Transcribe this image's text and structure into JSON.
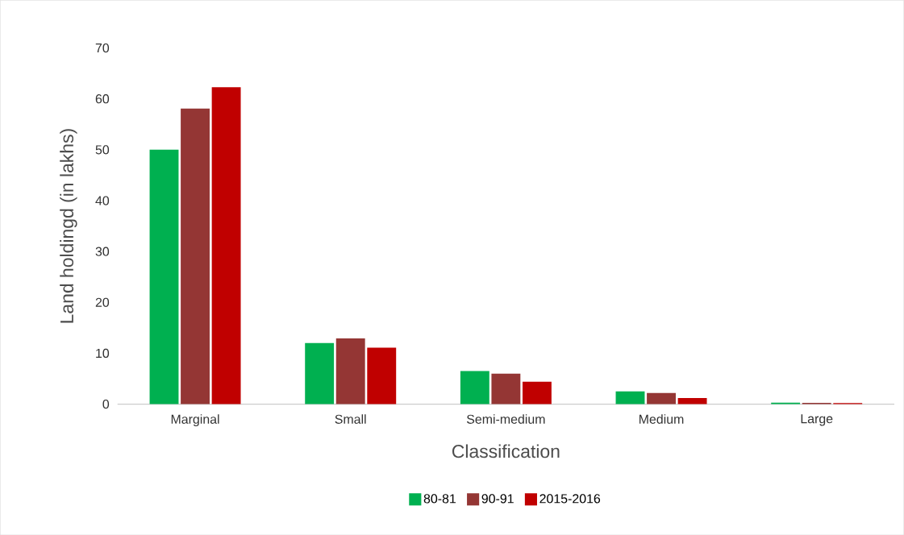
{
  "chart_data": {
    "type": "bar",
    "xlabel": "Classification",
    "ylabel": "Land holdingd (in lakhs)",
    "categories": [
      "Marginal",
      "Small",
      "Semi-medium",
      "Medium",
      "Large"
    ],
    "series": [
      {
        "name": "80-81",
        "color": "#00b050",
        "values": [
          50,
          12,
          6.5,
          2.5,
          0.3
        ]
      },
      {
        "name": "90-91",
        "color": "#943634",
        "values": [
          58.1,
          12.9,
          6.0,
          2.2,
          0.25
        ]
      },
      {
        "name": "2015-2016",
        "color": "#c00000",
        "values": [
          62.3,
          11.1,
          4.4,
          1.2,
          0.2
        ]
      }
    ],
    "ylim": [
      0,
      70
    ],
    "yticks": [
      0,
      10,
      20,
      30,
      40,
      50,
      60,
      70
    ],
    "grid": false,
    "legend": "bottom"
  }
}
